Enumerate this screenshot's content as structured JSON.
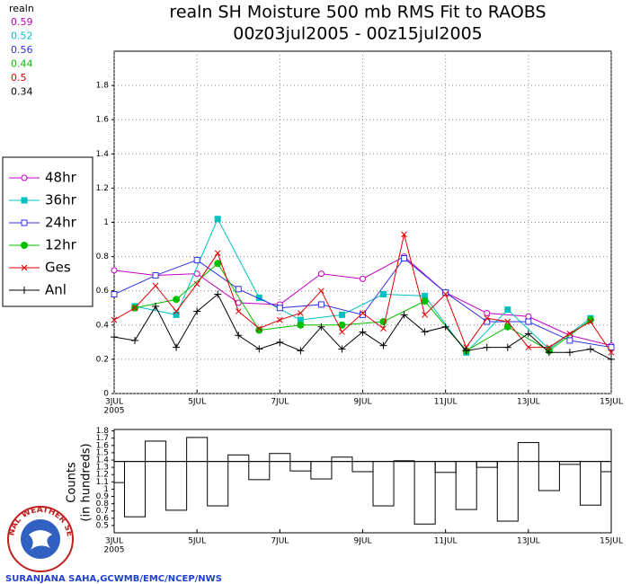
{
  "chart_data": [
    {
      "type": "line",
      "title": "realn SH Moisture 500 mb RMS Fit to RAOBS",
      "subtitle": "00z03jul2005 - 00z15jul2005",
      "legend_title": "realn",
      "x_year_label": "2005",
      "xlim": [
        3,
        15
      ],
      "xticks": [
        {
          "value": 3,
          "label": "3JUL"
        },
        {
          "value": 5,
          "label": "5JUL"
        },
        {
          "value": 7,
          "label": "7JUL"
        },
        {
          "value": 9,
          "label": "9JUL"
        },
        {
          "value": 11,
          "label": "11JUL"
        },
        {
          "value": 13,
          "label": "13JUL"
        },
        {
          "value": 15,
          "label": "15JUL"
        }
      ],
      "ylim": [
        0,
        2
      ],
      "yticks": [
        0,
        0.2,
        0.4,
        0.6,
        0.8,
        1,
        1.2,
        1.4,
        1.6,
        1.8
      ],
      "grid": true,
      "series": [
        {
          "name": "48hr",
          "color": "#c000c0",
          "marker": "open-circle",
          "mean": 0.59,
          "x": [
            3,
            4,
            5,
            6,
            7,
            8,
            9,
            10,
            11,
            12,
            13,
            14,
            15
          ],
          "values": [
            0.72,
            0.69,
            0.7,
            0.53,
            0.52,
            0.7,
            0.67,
            0.8,
            0.59,
            0.47,
            0.45,
            0.34,
            0.28
          ]
        },
        {
          "name": "36hr",
          "color": "#00c0c0",
          "marker": "filled-square",
          "mean": 0.52,
          "x": [
            3.5,
            4.5,
            5.5,
            6.5,
            7.5,
            8.5,
            9.5,
            10.5,
            11.5,
            12.5,
            13.5,
            14.5
          ],
          "values": [
            0.51,
            0.46,
            1.02,
            0.56,
            0.43,
            0.46,
            0.58,
            0.57,
            0.24,
            0.49,
            0.26,
            0.44
          ]
        },
        {
          "name": "24hr",
          "color": "#3030e0",
          "marker": "open-square",
          "mean": 0.56,
          "x": [
            3,
            4,
            5,
            6,
            7,
            8,
            9,
            10,
            11,
            12,
            13,
            14,
            15
          ],
          "values": [
            0.58,
            0.69,
            0.78,
            0.61,
            0.5,
            0.52,
            0.46,
            0.79,
            0.59,
            0.42,
            0.42,
            0.31,
            0.27
          ]
        },
        {
          "name": "12hr",
          "color": "#00c000",
          "marker": "filled-circle",
          "mean": 0.44,
          "x": [
            3.5,
            4.5,
            5.5,
            6.5,
            7.5,
            8.5,
            9.5,
            10.5,
            11.5,
            12.5,
            13.5,
            14.5
          ],
          "values": [
            0.5,
            0.55,
            0.76,
            0.37,
            0.4,
            0.4,
            0.42,
            0.54,
            0.25,
            0.39,
            0.25,
            0.43
          ]
        },
        {
          "name": "Ges",
          "color": "#e00000",
          "marker": "x",
          "mean": 0.5,
          "x": [
            3,
            3.5,
            4,
            4.5,
            5,
            5.5,
            6,
            6.5,
            7,
            7.5,
            8,
            8.5,
            9,
            9.5,
            10,
            10.5,
            11,
            11.5,
            12,
            12.5,
            13,
            13.5,
            14,
            14.5,
            15
          ],
          "values": [
            0.43,
            0.5,
            0.63,
            0.48,
            0.64,
            0.82,
            0.48,
            0.38,
            0.43,
            0.47,
            0.6,
            0.36,
            0.47,
            0.38,
            0.93,
            0.46,
            0.58,
            0.27,
            0.44,
            0.42,
            0.27,
            0.27,
            0.35,
            0.42,
            0.24
          ]
        },
        {
          "name": "Anl",
          "color": "#000000",
          "marker": "plus",
          "mean": 0.34,
          "x": [
            3,
            3.5,
            4,
            4.5,
            5,
            5.5,
            6,
            6.5,
            7,
            7.5,
            8,
            8.5,
            9,
            9.5,
            10,
            10.5,
            11,
            11.5,
            12,
            12.5,
            13,
            13.5,
            14,
            14.5,
            15
          ],
          "values": [
            0.33,
            0.31,
            0.51,
            0.27,
            0.48,
            0.58,
            0.34,
            0.26,
            0.3,
            0.25,
            0.39,
            0.26,
            0.36,
            0.28,
            0.46,
            0.36,
            0.39,
            0.25,
            0.27,
            0.27,
            0.35,
            0.24,
            0.24,
            0.26,
            0.2
          ]
        }
      ]
    },
    {
      "type": "step",
      "ylabel": "Counts",
      "ylabel2": "(in hundreds)",
      "x_year_label": "2005",
      "xlim": [
        3,
        15
      ],
      "xticks": [
        {
          "value": 3,
          "label": "3JUL"
        },
        {
          "value": 5,
          "label": "5JUL"
        },
        {
          "value": 7,
          "label": "7JUL"
        },
        {
          "value": 9,
          "label": "9JUL"
        },
        {
          "value": 11,
          "label": "11JUL"
        },
        {
          "value": 13,
          "label": "13JUL"
        },
        {
          "value": 15,
          "label": "15JUL"
        }
      ],
      "ylim": [
        0.4,
        1.82
      ],
      "yticks": [
        0.5,
        0.6,
        0.7,
        0.8,
        0.9,
        1,
        1.1,
        1.2,
        1.3,
        1.4,
        1.5,
        1.6,
        1.7,
        1.8
      ],
      "reference": 1.38,
      "color": "#000000",
      "x": [
        3,
        3.5,
        4,
        4.5,
        5,
        5.5,
        6,
        6.5,
        7,
        7.5,
        8,
        8.5,
        9,
        9.5,
        10,
        10.5,
        11,
        11.5,
        12,
        12.5,
        13,
        13.5,
        14,
        14.5,
        15
      ],
      "values": [
        1.09,
        0.62,
        1.66,
        0.71,
        1.71,
        0.77,
        1.47,
        1.13,
        1.49,
        1.25,
        1.14,
        1.44,
        1.24,
        0.77,
        1.39,
        0.52,
        1.23,
        0.72,
        1.3,
        0.56,
        1.64,
        0.98,
        1.34,
        0.78,
        1.24
      ]
    }
  ],
  "logo": {
    "text": "NATIONAL WEATHER SERVICE"
  },
  "footer": "SURANJANA SAHA,GCWMB/EMC/NCEP/NWS"
}
